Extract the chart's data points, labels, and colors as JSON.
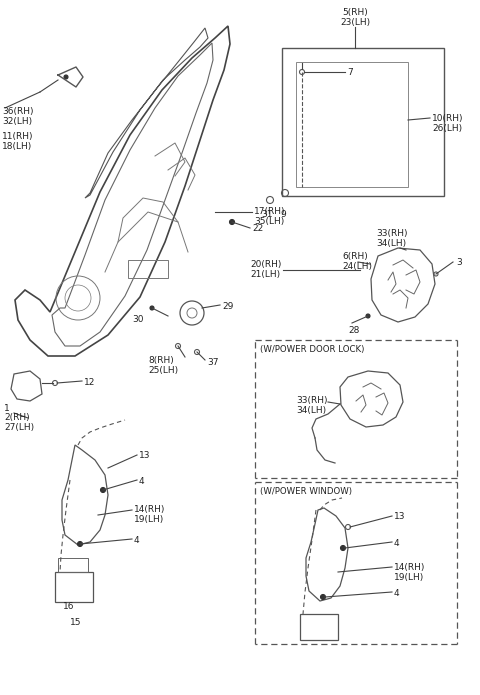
{
  "bg_color": "#ffffff",
  "line_color": "#555555",
  "labels": {
    "top_5_23": [
      "5(RH)",
      "23(LH)"
    ],
    "hinge_36_32": [
      "36(RH)",
      "32(LH)"
    ],
    "hinge_11_18": [
      "11(RH)",
      "18(LH)"
    ],
    "l1": "1",
    "l2_27": [
      "2(RH)",
      "27(LH)"
    ],
    "l12": "12",
    "l22": "22",
    "l30": "30",
    "l29": "29",
    "l8_25": [
      "8(RH)",
      "25(LH)"
    ],
    "l37": "37",
    "l31": "31",
    "l9": "9",
    "l17_35": [
      "17(RH)",
      "35(LH)"
    ],
    "l7": "7",
    "l10_26": [
      "10(RH)",
      "26(LH)"
    ],
    "l6_24": [
      "6(RH)",
      "24(LH)"
    ],
    "l33_34": [
      "33(RH)",
      "34(LH)"
    ],
    "l3": "3",
    "l20_21": [
      "20(RH)",
      "21(LH)"
    ],
    "l28": "28",
    "l13": "13",
    "l4a": "4",
    "l14_19": [
      "14(RH)",
      "19(LH)"
    ],
    "l4b": "4",
    "l16": "16",
    "l15": "15",
    "box1_title": "(W/POWER DOOR LOCK)",
    "box1_33_34": [
      "33(RH)",
      "34(LH)"
    ],
    "box2_title": "(W/POWER WINDOW)",
    "box2_13": "13",
    "box2_4a": "4",
    "box2_14_19": [
      "14(RH)",
      "19(LH)"
    ],
    "box2_4b": "4"
  }
}
